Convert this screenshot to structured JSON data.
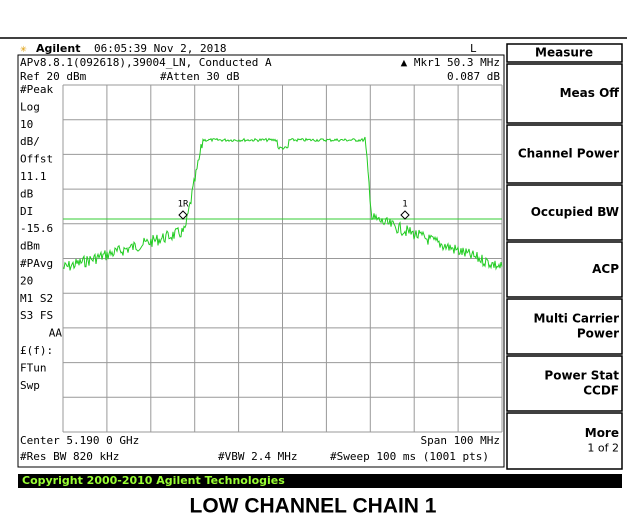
{
  "header": {
    "brand": "Agilent",
    "time_date": "06:05:39  Nov 2, 2018",
    "mode": "L"
  },
  "info": {
    "version": "APv8.8.1(092618),39004_LN, Conducted A",
    "marker": "▲ Mkr1  50.3 MHz",
    "ref": "Ref 20 dBm",
    "atten": "#Atten 30 dB",
    "marker_value": "0.087 dB"
  },
  "left_labels": [
    "#Peak",
    "Log",
    "10",
    "dB/",
    "Offst",
    "11.1",
    "dB",
    "DI",
    "-15.6",
    "dBm",
    "#PAvg",
    "20",
    "M1  S2",
    "S3  FS",
    "AA",
    "£(f):",
    "FTun",
    "Swp"
  ],
  "markers": [
    "1R",
    "1"
  ],
  "bottom": {
    "center": "Center 5.190 0 GHz",
    "span": "Span 100 MHz",
    "rbw": "#Res BW 820 kHz",
    "vbw": "#VBW 2.4 MHz",
    "sweep": "#Sweep 100 ms (1001 pts)"
  },
  "softkeys": {
    "title": "Measure",
    "keys": [
      [
        "Meas Off"
      ],
      [
        "Channel Power"
      ],
      [
        "Occupied BW"
      ],
      [
        "ACP"
      ],
      [
        "Multi Carrier",
        "Power"
      ],
      [
        "Power Stat",
        "CCDF"
      ],
      [
        "More",
        "1 of 2"
      ]
    ]
  },
  "copyright": "Copyright 2000-2010 Agilent Technologies",
  "caption": "LOW CHANNEL CHAIN 1"
}
